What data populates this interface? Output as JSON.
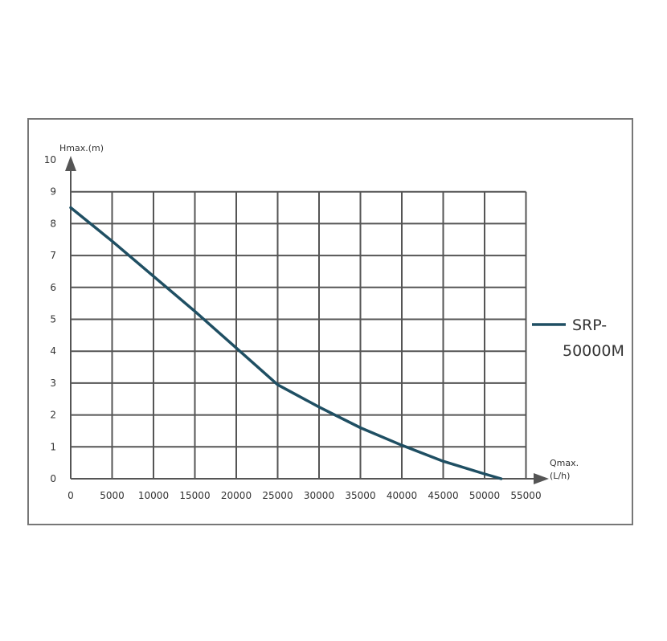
{
  "chart_data": {
    "type": "line",
    "ylabel": "Hmax.(m)",
    "xlabel_line1": "Qmax.",
    "xlabel_line2": "(L/h)",
    "xlim": [
      0,
      55000
    ],
    "ylim": [
      0,
      10
    ],
    "x_ticks": [
      0,
      5000,
      10000,
      15000,
      20000,
      25000,
      30000,
      35000,
      40000,
      45000,
      50000,
      55000
    ],
    "y_ticks": [
      0,
      1,
      2,
      3,
      4,
      5,
      6,
      7,
      8,
      9,
      10
    ],
    "grid": true,
    "legend_position": "right",
    "series": [
      {
        "name_line1": "SRP-",
        "name_line2": "50000M",
        "color": "#1f4f63",
        "x": [
          0,
          5000,
          10000,
          15000,
          20000,
          25000,
          30000,
          35000,
          40000,
          45000,
          50000,
          52000
        ],
        "y": [
          8.5,
          7.45,
          6.35,
          5.25,
          4.1,
          2.95,
          2.25,
          1.6,
          1.05,
          0.55,
          0.15,
          0.0
        ]
      }
    ]
  }
}
